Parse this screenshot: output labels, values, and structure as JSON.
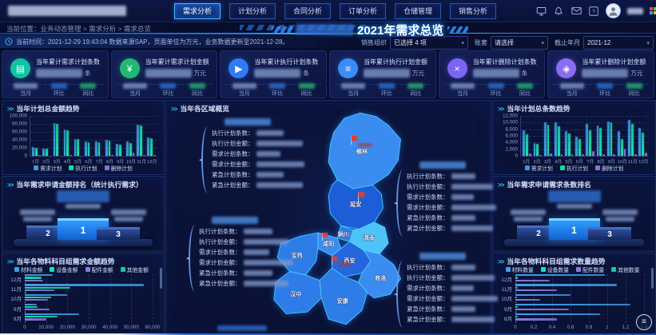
{
  "topbar": {
    "nav": [
      {
        "label": "需求分析",
        "active": true
      },
      {
        "label": "计划分析",
        "active": false
      },
      {
        "label": "合同分析",
        "active": false
      },
      {
        "label": "订单分析",
        "active": false
      },
      {
        "label": "仓储管理",
        "active": false
      },
      {
        "label": "销售分析",
        "active": false
      }
    ]
  },
  "header": {
    "breadcrumb": "当前位置：业务动态管理 > 需求分析 > 需求总览",
    "title": "2021年需求总览",
    "notice": "当前时间：2021-12-29 19:43:04 数据来源SAP，页面单位为万元，业务数据更新至2021-12-28。"
  },
  "filters": [
    {
      "label": "销售组织",
      "value": "已选择 4 项"
    },
    {
      "label": "账套",
      "value": "请选择"
    },
    {
      "label": "截止年月",
      "value": "2021-12"
    }
  ],
  "kpi_footer": [
    "当月",
    "环比",
    "同比"
  ],
  "kpis": [
    {
      "id": "demand-count",
      "title": "当年累计需求计划条数",
      "unit": "条",
      "icon": "clipboard",
      "glyph": "▤",
      "color": "#10c3a2"
    },
    {
      "id": "demand-amount",
      "title": "当年累计需求计划金额",
      "unit": "万元",
      "icon": "coin",
      "glyph": "¥",
      "color": "#22b873"
    },
    {
      "id": "execute-count",
      "title": "当年累计执行计划条数",
      "unit": "条",
      "icon": "play",
      "glyph": "▶",
      "color": "#2e7bf3"
    },
    {
      "id": "execute-amount",
      "title": "当年累计执行计划金额",
      "unit": "万元",
      "icon": "database",
      "glyph": "≡",
      "color": "#3d8bf5"
    },
    {
      "id": "delete-count",
      "title": "当年累计删除计划条数",
      "unit": "条",
      "icon": "close",
      "glyph": "×",
      "color": "#7b64f2"
    },
    {
      "id": "delete-amount",
      "title": "当年累计删除计划金额",
      "unit": "万元",
      "icon": "tag",
      "glyph": "◈",
      "color": "#8a6cf5"
    }
  ],
  "rank_left": {
    "title": "当年需求申请金额排名（统计执行需求）",
    "ranks": [
      "2",
      "1",
      "3"
    ]
  },
  "rank_right": {
    "title": "当年需求申请需求条数排名",
    "ranks": [
      "2",
      "1",
      "3"
    ]
  },
  "map_panel": {
    "title": "当年各区域概览",
    "cities": [
      "榆林",
      "延安",
      "铜川",
      "渭南",
      "咸阳",
      "西安",
      "宝鸡",
      "汉中",
      "安康",
      "商洛"
    ],
    "callout_labels": [
      "执行计划条数：",
      "执行计划金额：",
      "需求计划条数：",
      "需求计划金额：",
      "紧急计划条数：",
      "紧急计划金额："
    ]
  },
  "chart_data": [
    {
      "type": "bar",
      "title": "当年计划总金额趋势",
      "categories": [
        "1月",
        "2月",
        "3月",
        "4月",
        "5月",
        "6月",
        "7月",
        "8月",
        "9月",
        "10月",
        "11月",
        "12月"
      ],
      "series": [
        {
          "name": "需求计划",
          "color": "#3fa0e8",
          "values": [
            23000,
            18500,
            82000,
            66000,
            43000,
            36500,
            36000,
            40000,
            29500,
            36000,
            78000,
            45500
          ]
        },
        {
          "name": "执行计划",
          "color": "#1be3a9",
          "values": [
            21000,
            17500,
            81000,
            64500,
            42000,
            35000,
            35000,
            38500,
            28500,
            33000,
            76000,
            44000
          ]
        },
        {
          "name": "删除计划",
          "color": "#8d7bd8",
          "values": [
            1200,
            700,
            1000,
            1100,
            900,
            800,
            1000,
            1400,
            900,
            8000,
            1600,
            2600
          ]
        }
      ],
      "ylim": [
        0,
        100000
      ],
      "yticks": [
        "100,000",
        "80,000",
        "60,000",
        "40,000",
        "20,000",
        "0"
      ],
      "grid": true,
      "legend_position": "bottom"
    },
    {
      "type": "bar",
      "title": "当年计划总条数趋势",
      "categories": [
        "1月",
        "2月",
        "3月",
        "4月",
        "5月",
        "6月",
        "7月",
        "8月",
        "9月",
        "10月",
        "11月",
        "12月"
      ],
      "series": [
        {
          "name": "需求计划",
          "color": "#3fa0e8",
          "values": [
            7600,
            3900,
            10000,
            10200,
            7500,
            5800,
            9500,
            9200,
            10300,
            7500,
            10700,
            8500
          ]
        },
        {
          "name": "执行计划",
          "color": "#1be3a9",
          "values": [
            6600,
            3500,
            9300,
            9000,
            6800,
            5000,
            7800,
            8300,
            10000,
            5000,
            9700,
            7000
          ]
        },
        {
          "name": "删除计划",
          "color": "#8d7bd8",
          "values": [
            800,
            300,
            700,
            500,
            600,
            400,
            1500,
            400,
            400,
            2200,
            500,
            1000
          ]
        }
      ],
      "ylim": [
        0,
        12000
      ],
      "yticks": [
        "12,000",
        "10,000",
        "8,000",
        "6,000",
        "4,000",
        "2,000",
        "0"
      ],
      "grid": true,
      "legend_position": "bottom"
    },
    {
      "type": "hbar",
      "title": "当年各物料科目组需求金额趋势",
      "categories": [
        "12月",
        "11月",
        "10月",
        "9月",
        "8月"
      ],
      "series": [
        {
          "name": "材料金额",
          "color": "#3fa0e8",
          "values": [
            13000,
            56000,
            20000,
            5500,
            25500
          ]
        },
        {
          "name": "设备金额",
          "color": "#1be3a9",
          "values": [
            8000,
            21500,
            12500,
            6000,
            15500
          ]
        },
        {
          "name": "配件金额",
          "color": "#8d7bd8",
          "values": [
            8500,
            14000,
            11000,
            11500,
            10000
          ]
        },
        {
          "name": "其他金额",
          "color": "#12c9a2",
          "values": [
            400,
            600,
            500,
            400,
            500
          ]
        }
      ],
      "xlim": [
        0,
        60000
      ],
      "xticks": [
        "0",
        "10,000",
        "20,000",
        "30,000",
        "40,000",
        "50,000",
        "60,000"
      ],
      "grid": true,
      "legend_position": "top"
    },
    {
      "type": "hbar",
      "title": "当年各物料科目组需求数量趋势",
      "categories": [
        "12月",
        "11月",
        "10月",
        "9月",
        "8月"
      ],
      "series": [
        {
          "name": "材料数量",
          "color": "#3fa0e8",
          "values": [
            0.97,
            1.1,
            0.6,
            1.25,
            0.92
          ]
        },
        {
          "name": "设备数量",
          "color": "#1be3a9",
          "values": [
            0.03,
            0.03,
            0.02,
            0.03,
            0.03
          ]
        },
        {
          "name": "配件数量",
          "color": "#8d7bd8",
          "values": [
            0.37,
            0.45,
            0.27,
            0.58,
            0.45
          ]
        },
        {
          "name": "其他数量",
          "color": "#12c9a2",
          "values": [
            0.01,
            0.01,
            0.01,
            0.01,
            0.01
          ]
        }
      ],
      "xlim": [
        0,
        1.4
      ],
      "xticks": [
        "0",
        "0.2",
        "0.4",
        "0.6",
        "0.8",
        "1",
        "1.2",
        "1.4"
      ],
      "grid": true,
      "legend_position": "top"
    }
  ],
  "colors": {
    "accent": "#1e8fff",
    "panel_border": "#1b2c66",
    "demand": "#3fa0e8",
    "execute": "#1be3a9",
    "delete": "#8d7bd8",
    "other": "#12c9a2",
    "map_fill": "#2e7ce8",
    "map_stroke": "#49d9ff",
    "podium_first": "#1e8bf5"
  }
}
